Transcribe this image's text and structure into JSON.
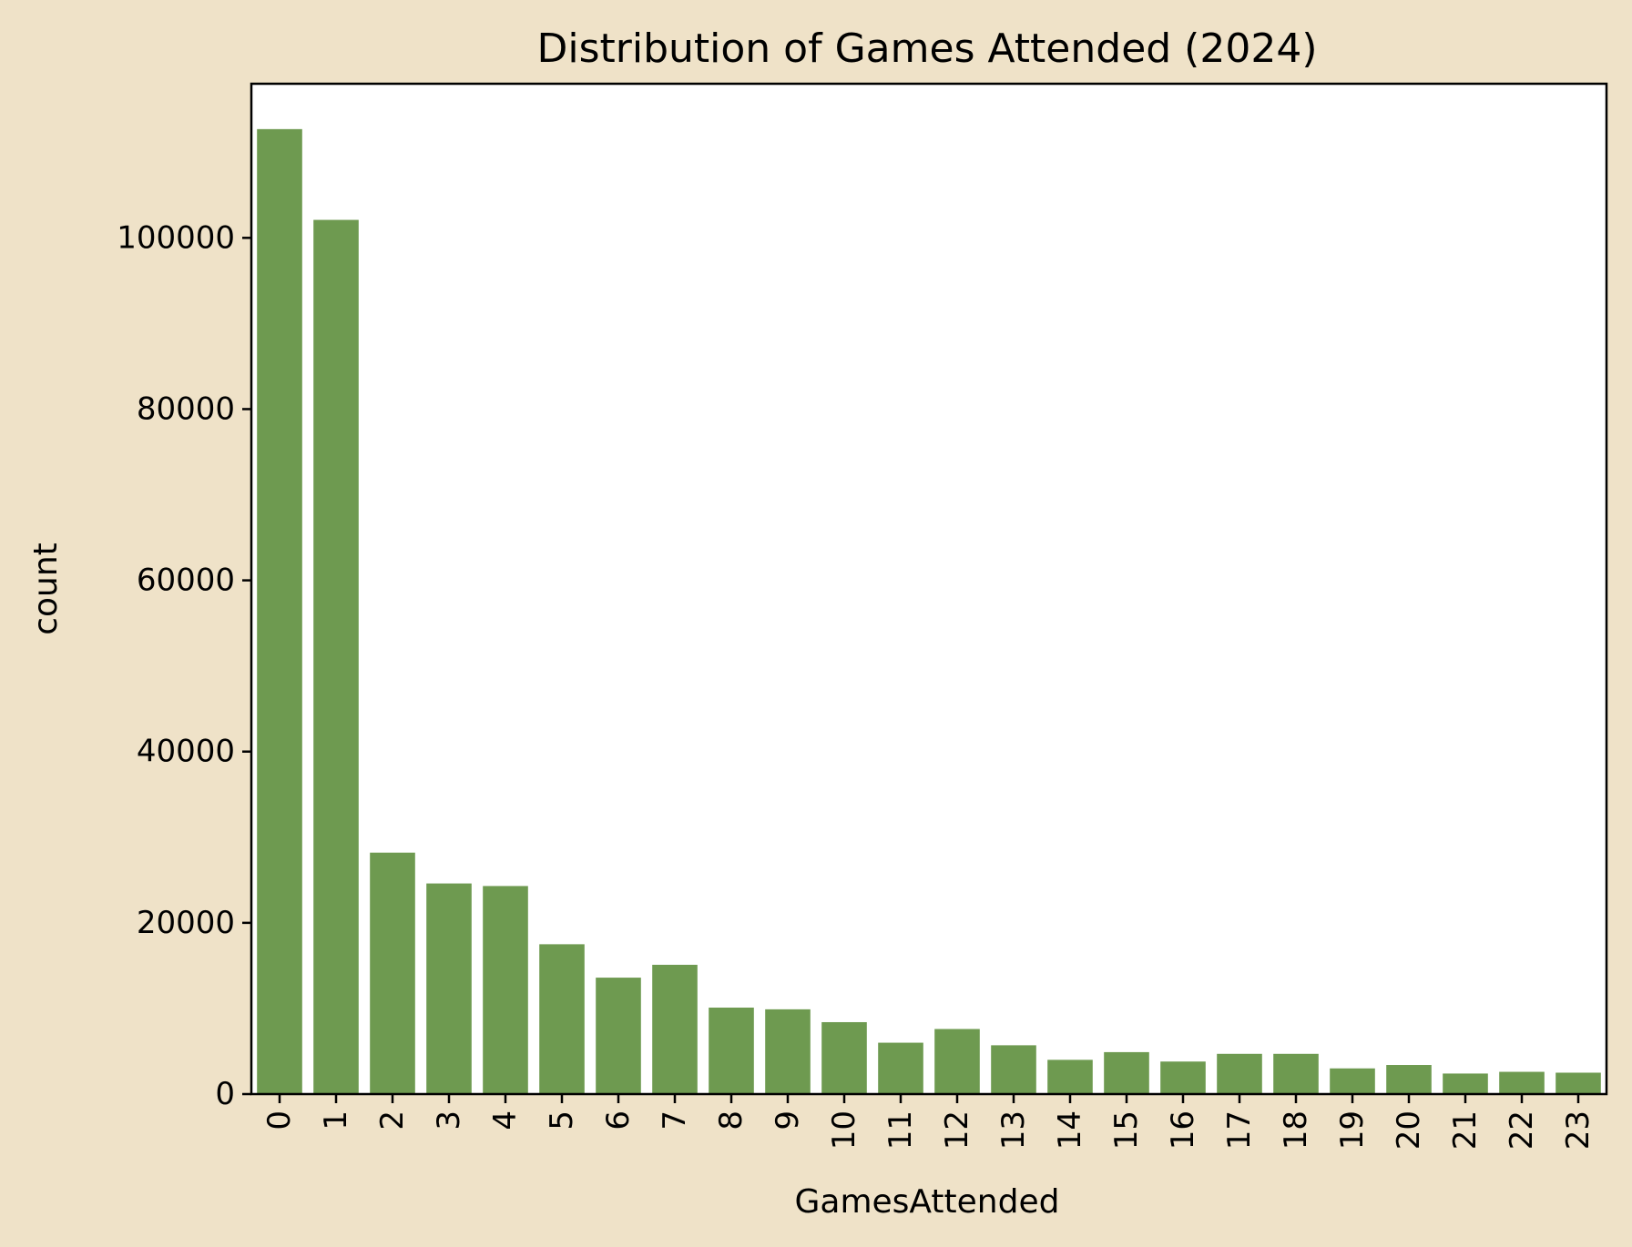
{
  "chart_data": {
    "type": "bar",
    "title": "Distribution of Games Attended (2024)",
    "xlabel": "GamesAttended",
    "ylabel": "count",
    "categories": [
      "0",
      "1",
      "2",
      "3",
      "4",
      "5",
      "6",
      "7",
      "8",
      "9",
      "10",
      "11",
      "12",
      "13",
      "14",
      "15",
      "16",
      "17",
      "18",
      "19",
      "20",
      "21",
      "22",
      "23"
    ],
    "values": [
      112700,
      102100,
      28200,
      24600,
      24300,
      17500,
      13600,
      15100,
      10100,
      9900,
      8400,
      6000,
      7600,
      5700,
      4000,
      4900,
      3800,
      4700,
      4700,
      3000,
      3400,
      2400,
      2600,
      2500
    ],
    "ylim": [
      0,
      118000
    ],
    "yticks": [
      0,
      20000,
      40000,
      60000,
      80000,
      100000
    ],
    "grid": false,
    "bar_color": "#6e9a50",
    "background_color": "#efe2c8",
    "plot_background_color": "#ffffff"
  }
}
